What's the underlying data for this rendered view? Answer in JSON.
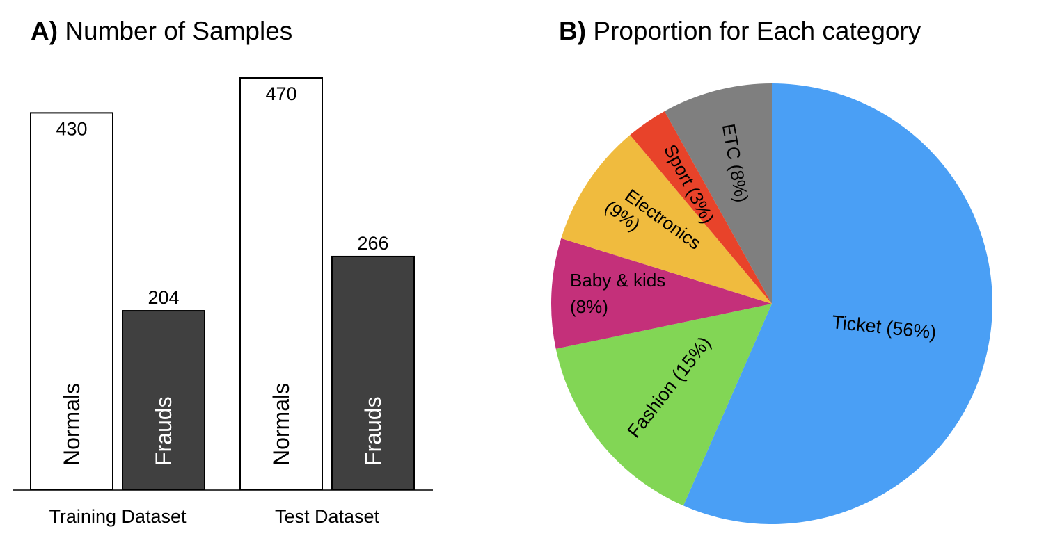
{
  "chart_data": [
    {
      "type": "bar",
      "panel": "A)",
      "title": "Number of Samples",
      "groups": [
        "Training Dataset",
        "Test Dataset"
      ],
      "series": [
        {
          "name": "Normals",
          "values": [
            430,
            470
          ],
          "color": "#ffffff"
        },
        {
          "name": "Frauds",
          "values": [
            204,
            266
          ],
          "color": "#404040"
        }
      ],
      "value_labels": [
        "430",
        "204",
        "470",
        "266"
      ],
      "ylim": [
        0,
        470
      ],
      "grid": false,
      "legend": "none"
    },
    {
      "type": "pie",
      "panel": "B)",
      "title": "Proportion for Each category",
      "slices": [
        {
          "label": "Ticket (56%)",
          "value": 56,
          "color": "#4a9ff5"
        },
        {
          "label": "Fashion (15%)",
          "value": 15,
          "color": "#82d655"
        },
        {
          "label": "Baby & kids (8%)",
          "value": 8,
          "color": "#c4307a"
        },
        {
          "label": "Electronics (9%)",
          "value": 9,
          "color": "#f0bb3e"
        },
        {
          "label": "Sport (3%)",
          "value": 3,
          "color": "#e8432a"
        },
        {
          "label": "ETC (8%)",
          "value": 8,
          "color": "#7f7f7f"
        }
      ],
      "start": "top",
      "direction": "clockwise"
    }
  ]
}
